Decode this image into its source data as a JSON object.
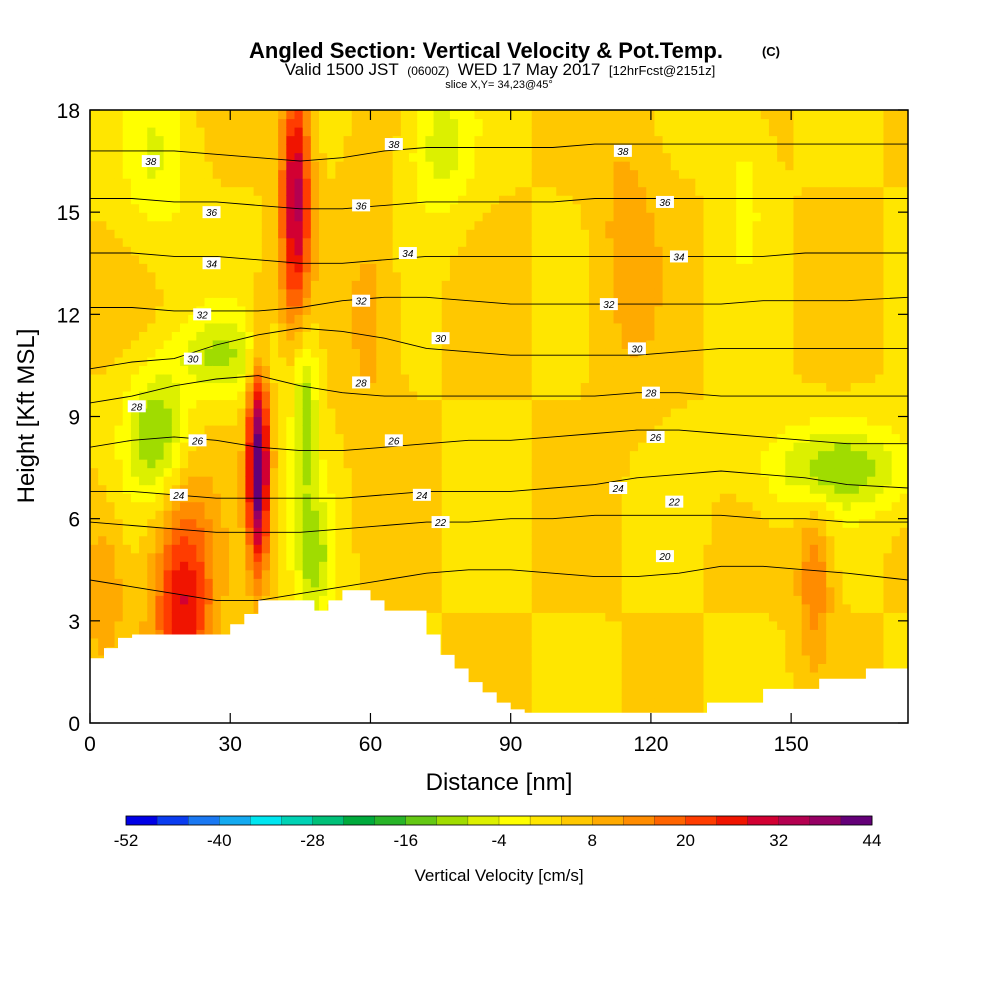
{
  "title": {
    "main": "Angled Section: Vertical Velocity & Pot.Temp.",
    "copyright": "(C)",
    "valid_line_a": "Valid 1500 JST",
    "valid_utc": "(0600Z)",
    "valid_line_b": "WED 17 May 2017",
    "forecast": "[12hrFcst@2151z]",
    "slice": "slice X,Y= 34,23@45°"
  },
  "chart_data": {
    "type": "heatmap",
    "xlabel": "Distance [nm]",
    "ylabel": "Height [Kft MSL]",
    "xlim": [
      0,
      175
    ],
    "ylim": [
      0,
      18
    ],
    "x_ticks": [
      0,
      30,
      60,
      90,
      120,
      150
    ],
    "y_ticks": [
      0,
      3,
      6,
      9,
      12,
      15,
      18
    ],
    "grid": false,
    "colorbar": {
      "label": "Vertical Velocity [cm/s]",
      "min": -52,
      "max": 44,
      "step": 4,
      "tick_values": [
        -52,
        -40,
        -28,
        -16,
        -4,
        8,
        20,
        32,
        44
      ],
      "colors": [
        "#0000e6",
        "#0a3cf0",
        "#1a78f2",
        "#14aaf0",
        "#00e6f0",
        "#00d2b4",
        "#00c078",
        "#00aa3c",
        "#28b428",
        "#64c814",
        "#a0dc00",
        "#dcf000",
        "#ffff00",
        "#ffe600",
        "#ffc800",
        "#ffaa00",
        "#ff8c00",
        "#ff6400",
        "#ff3c00",
        "#f01400",
        "#d20032",
        "#b40050",
        "#960064",
        "#640078"
      ]
    },
    "terrain_profile": {
      "x": [
        0,
        3,
        6,
        9,
        12,
        27,
        30,
        33,
        36,
        39,
        45,
        48,
        51,
        54,
        57,
        60,
        63,
        66,
        69,
        72,
        75,
        78,
        81,
        84,
        87,
        90,
        93,
        129,
        132,
        141,
        144,
        153,
        156,
        166,
        175
      ],
      "height": [
        1.9,
        2.2,
        2.5,
        2.6,
        2.6,
        2.6,
        2.9,
        3.2,
        3.6,
        3.6,
        3.6,
        3.3,
        3.6,
        3.9,
        3.9,
        3.6,
        3.3,
        3.3,
        3.3,
        2.6,
        2.0,
        1.6,
        1.2,
        0.9,
        0.6,
        0.4,
        0.3,
        0.3,
        0.6,
        0.6,
        1.0,
        1.0,
        1.3,
        1.6,
        1.6
      ]
    },
    "theta_contours": [
      {
        "value": 20,
        "heights": [
          4.2,
          4.0,
          3.8,
          3.6,
          3.6,
          3.8,
          4.0,
          4.2,
          4.4,
          4.5,
          4.5,
          4.4,
          4.3,
          4.3,
          4.4,
          4.6,
          4.6,
          4.5,
          4.4,
          4.2
        ]
      },
      {
        "value": 22,
        "heights": [
          5.9,
          5.8,
          5.7,
          5.6,
          5.6,
          5.6,
          5.7,
          5.8,
          5.9,
          5.9,
          6.0,
          6.0,
          6.1,
          6.1,
          6.1,
          6.1,
          6.0,
          6.0,
          5.9,
          5.9
        ]
      },
      {
        "value": 24,
        "heights": [
          6.8,
          6.8,
          6.7,
          6.6,
          6.6,
          6.6,
          6.6,
          6.7,
          6.8,
          6.8,
          6.8,
          6.9,
          7.0,
          7.2,
          7.3,
          7.4,
          7.3,
          7.2,
          7.0,
          6.9
        ]
      },
      {
        "value": 26,
        "heights": [
          8.1,
          8.3,
          8.4,
          8.3,
          8.1,
          8.0,
          8.0,
          8.1,
          8.2,
          8.3,
          8.3,
          8.4,
          8.5,
          8.6,
          8.6,
          8.5,
          8.4,
          8.3,
          8.2,
          8.2
        ]
      },
      {
        "value": 28,
        "heights": [
          9.4,
          9.6,
          9.9,
          10.1,
          10.2,
          9.9,
          9.7,
          9.6,
          9.6,
          9.6,
          9.6,
          9.6,
          9.6,
          9.7,
          9.7,
          9.6,
          9.6,
          9.6,
          9.6,
          9.6
        ]
      },
      {
        "value": 30,
        "heights": [
          10.4,
          10.6,
          10.7,
          11.1,
          11.4,
          11.6,
          11.5,
          11.3,
          11.0,
          10.9,
          10.8,
          10.8,
          10.8,
          10.8,
          10.9,
          11.0,
          11.0,
          11.0,
          11.0,
          11.0
        ]
      },
      {
        "value": 32,
        "heights": [
          12.2,
          12.2,
          12.1,
          12.1,
          12.1,
          12.2,
          12.4,
          12.5,
          12.5,
          12.4,
          12.3,
          12.3,
          12.3,
          12.3,
          12.3,
          12.3,
          12.4,
          12.4,
          12.4,
          12.5
        ]
      },
      {
        "value": 34,
        "heights": [
          13.8,
          13.8,
          13.7,
          13.7,
          13.6,
          13.5,
          13.5,
          13.6,
          13.7,
          13.7,
          13.7,
          13.7,
          13.7,
          13.7,
          13.7,
          13.7,
          13.7,
          13.8,
          13.8,
          13.8
        ]
      },
      {
        "value": 36,
        "heights": [
          15.4,
          15.4,
          15.3,
          15.3,
          15.2,
          15.1,
          15.1,
          15.2,
          15.3,
          15.3,
          15.3,
          15.3,
          15.4,
          15.4,
          15.4,
          15.4,
          15.4,
          15.4,
          15.4,
          15.4
        ]
      },
      {
        "value": 38,
        "heights": [
          16.8,
          16.8,
          16.8,
          16.7,
          16.6,
          16.5,
          16.6,
          16.8,
          16.9,
          16.9,
          16.9,
          16.9,
          17.0,
          17.0,
          17.0,
          17.0,
          17.0,
          17.0,
          17.0,
          17.0
        ]
      }
    ],
    "contour_x": [
      0,
      9,
      18,
      27,
      36,
      45,
      54,
      63,
      72,
      81,
      90,
      99,
      108,
      117,
      126,
      135,
      144,
      153,
      162,
      175
    ],
    "contour_labels": [
      {
        "value": 38,
        "x": 13,
        "y": 16.5
      },
      {
        "value": 38,
        "x": 65,
        "y": 17.0
      },
      {
        "value": 38,
        "x": 114,
        "y": 16.8
      },
      {
        "value": 36,
        "x": 26,
        "y": 15.0
      },
      {
        "value": 36,
        "x": 58,
        "y": 15.2
      },
      {
        "value": 36,
        "x": 123,
        "y": 15.3
      },
      {
        "value": 34,
        "x": 26,
        "y": 13.5
      },
      {
        "value": 34,
        "x": 68,
        "y": 13.8
      },
      {
        "value": 34,
        "x": 126,
        "y": 13.7
      },
      {
        "value": 32,
        "x": 24,
        "y": 12.0
      },
      {
        "value": 32,
        "x": 58,
        "y": 12.4
      },
      {
        "value": 32,
        "x": 111,
        "y": 12.3
      },
      {
        "value": 30,
        "x": 22,
        "y": 10.7
      },
      {
        "value": 30,
        "x": 75,
        "y": 11.3
      },
      {
        "value": 30,
        "x": 117,
        "y": 11.0
      },
      {
        "value": 28,
        "x": 10,
        "y": 9.3
      },
      {
        "value": 28,
        "x": 58,
        "y": 10.0
      },
      {
        "value": 28,
        "x": 120,
        "y": 9.7
      },
      {
        "value": 26,
        "x": 23,
        "y": 8.3
      },
      {
        "value": 26,
        "x": 65,
        "y": 8.3
      },
      {
        "value": 26,
        "x": 121,
        "y": 8.4
      },
      {
        "value": 24,
        "x": 19,
        "y": 6.7
      },
      {
        "value": 24,
        "x": 71,
        "y": 6.7
      },
      {
        "value": 24,
        "x": 113,
        "y": 6.9
      },
      {
        "value": 22,
        "x": 75,
        "y": 5.9
      },
      {
        "value": 22,
        "x": 125,
        "y": 6.5
      },
      {
        "value": 20,
        "x": 123,
        "y": 4.9
      }
    ],
    "velocity_background": 4,
    "velocity_features": [
      {
        "x": 36,
        "y": 7.5,
        "sx": 1.6,
        "sy": 2.0,
        "amp": 42
      },
      {
        "x": 44,
        "y": 15.5,
        "sx": 2.2,
        "sy": 2.5,
        "amp": 30
      },
      {
        "x": 20,
        "y": 3.5,
        "sx": 4.5,
        "sy": 2.2,
        "amp": 24
      },
      {
        "x": 14,
        "y": 8.5,
        "sx": 4.5,
        "sy": 1.3,
        "amp": -16
      },
      {
        "x": 28,
        "y": 10.8,
        "sx": 7.0,
        "sy": 0.9,
        "amp": -12
      },
      {
        "x": 46,
        "y": 9.2,
        "sx": 2.0,
        "sy": 1.8,
        "amp": -15
      },
      {
        "x": 48,
        "y": 4.8,
        "sx": 3.0,
        "sy": 1.4,
        "amp": -13
      },
      {
        "x": 75,
        "y": 17.0,
        "sx": 5.0,
        "sy": 1.5,
        "amp": -10
      },
      {
        "x": 160,
        "y": 7.5,
        "sx": 12.0,
        "sy": 0.9,
        "amp": -14
      },
      {
        "x": 155,
        "y": 4.2,
        "sx": 2.5,
        "sy": 1.6,
        "amp": 12
      },
      {
        "x": 3,
        "y": 4.0,
        "sx": 3.0,
        "sy": 1.5,
        "amp": 8
      },
      {
        "x": 14,
        "y": 16.5,
        "sx": 5.0,
        "sy": 1.8,
        "amp": -8
      },
      {
        "x": 60,
        "y": 12.0,
        "sx": 4.0,
        "sy": 2.5,
        "amp": 6
      },
      {
        "x": 115,
        "y": 14.0,
        "sx": 5.0,
        "sy": 3.0,
        "amp": 6
      },
      {
        "x": 140,
        "y": 16.0,
        "sx": 3.5,
        "sy": 2.0,
        "amp": -5
      }
    ]
  }
}
